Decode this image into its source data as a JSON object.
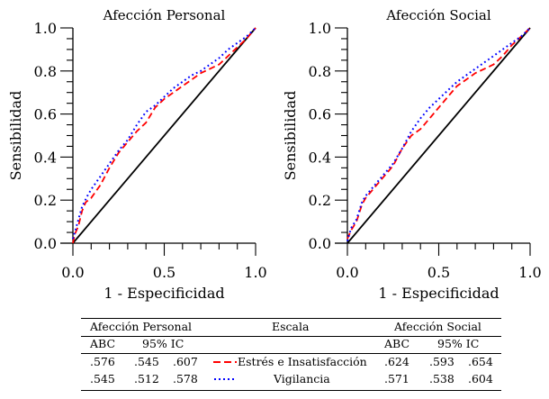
{
  "chart_data": [
    {
      "type": "line",
      "title": "Afección Personal",
      "xlabel": "1 - Especificidad",
      "ylabel": "Sensibilidad",
      "xlim": [
        0,
        1
      ],
      "ylim": [
        0,
        1
      ],
      "xticks": [
        "0.0",
        "0.5",
        "1.0"
      ],
      "yticks": [
        "0.0",
        "0.2",
        "0.4",
        "0.6",
        "0.8",
        "1.0"
      ],
      "grid": false,
      "series": [
        {
          "name": "Reference",
          "style": "solid",
          "color": "#000000",
          "x": [
            0,
            1
          ],
          "y": [
            0,
            1
          ]
        },
        {
          "name": "Estrés e Insatisfacción",
          "style": "dashed",
          "color": "#ff0000",
          "x": [
            0,
            0.01,
            0.03,
            0.05,
            0.07,
            0.1,
            0.15,
            0.2,
            0.25,
            0.3,
            0.35,
            0.4,
            0.45,
            0.5,
            0.55,
            0.6,
            0.65,
            0.7,
            0.75,
            0.8,
            0.85,
            0.9,
            0.95,
            1
          ],
          "y": [
            0,
            0.04,
            0.08,
            0.15,
            0.19,
            0.21,
            0.27,
            0.35,
            0.42,
            0.47,
            0.52,
            0.56,
            0.63,
            0.67,
            0.7,
            0.73,
            0.76,
            0.79,
            0.81,
            0.83,
            0.87,
            0.91,
            0.95,
            1
          ]
        },
        {
          "name": "Vigilancia",
          "style": "dotted",
          "color": "#0000ff",
          "x": [
            0,
            0.02,
            0.05,
            0.08,
            0.1,
            0.15,
            0.2,
            0.25,
            0.3,
            0.35,
            0.4,
            0.45,
            0.5,
            0.55,
            0.6,
            0.65,
            0.7,
            0.75,
            0.8,
            0.85,
            0.9,
            0.95,
            1
          ],
          "y": [
            0.02,
            0.08,
            0.17,
            0.22,
            0.25,
            0.31,
            0.37,
            0.43,
            0.48,
            0.55,
            0.61,
            0.64,
            0.68,
            0.72,
            0.75,
            0.78,
            0.8,
            0.83,
            0.86,
            0.9,
            0.93,
            0.96,
            1
          ]
        }
      ]
    },
    {
      "type": "line",
      "title": "Afección Social",
      "xlabel": "1 - Especificidad",
      "ylabel": "Sensibilidad",
      "xlim": [
        0,
        1
      ],
      "ylim": [
        0,
        1
      ],
      "xticks": [
        "0.0",
        "0.5",
        "1.0"
      ],
      "yticks": [
        "0.0",
        "0.2",
        "0.4",
        "0.6",
        "0.8",
        "1.0"
      ],
      "grid": false,
      "series": [
        {
          "name": "Reference",
          "style": "solid",
          "color": "#000000",
          "x": [
            0,
            1
          ],
          "y": [
            0,
            1
          ]
        },
        {
          "name": "Estrés e Insatisfacción",
          "style": "dashed",
          "color": "#ff0000",
          "x": [
            0,
            0.02,
            0.05,
            0.08,
            0.1,
            0.15,
            0.2,
            0.25,
            0.3,
            0.35,
            0.4,
            0.45,
            0.5,
            0.55,
            0.6,
            0.65,
            0.7,
            0.75,
            0.8,
            0.85,
            0.9,
            0.95,
            1
          ],
          "y": [
            0.02,
            0.06,
            0.1,
            0.18,
            0.21,
            0.26,
            0.31,
            0.36,
            0.44,
            0.5,
            0.53,
            0.58,
            0.63,
            0.68,
            0.73,
            0.76,
            0.79,
            0.81,
            0.83,
            0.87,
            0.92,
            0.96,
            1
          ]
        },
        {
          "name": "Vigilancia",
          "style": "dotted",
          "color": "#0000ff",
          "x": [
            0,
            0.02,
            0.05,
            0.08,
            0.1,
            0.15,
            0.2,
            0.25,
            0.3,
            0.35,
            0.4,
            0.45,
            0.5,
            0.55,
            0.6,
            0.65,
            0.7,
            0.75,
            0.8,
            0.85,
            0.9,
            0.95,
            1
          ],
          "y": [
            0.01,
            0.07,
            0.11,
            0.19,
            0.22,
            0.27,
            0.32,
            0.37,
            0.44,
            0.52,
            0.58,
            0.63,
            0.67,
            0.71,
            0.75,
            0.78,
            0.81,
            0.84,
            0.87,
            0.9,
            0.93,
            0.96,
            1
          ]
        }
      ]
    }
  ],
  "legend_table": {
    "header_left": "Afección Personal",
    "header_center": "Escala",
    "header_right": "Afección Social",
    "sub_abc": "ABC",
    "sub_ic": "95% IC",
    "rows": [
      {
        "scale": "Estrés e Insatisfacción",
        "line_style": "dashed",
        "color": "#ff0000",
        "personal": [
          ".576",
          ".545",
          ".607"
        ],
        "social": [
          ".624",
          ".593",
          ".654"
        ]
      },
      {
        "scale": "Vigilancia",
        "line_style": "dotted",
        "color": "#0000ff",
        "personal": [
          ".545",
          ".512",
          ".578"
        ],
        "social": [
          ".571",
          ".538",
          ".604"
        ]
      }
    ]
  }
}
